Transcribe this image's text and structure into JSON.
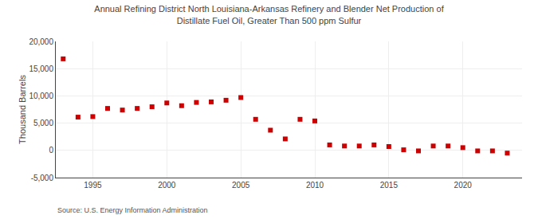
{
  "chart_data": {
    "type": "scatter",
    "title": "Annual Refining District North Louisiana-Arkansas Refinery and Blender Net Production of\nDistillate Fuel Oil, Greater Than 500 ppm Sulfur",
    "ylabel": "Thousand Barrels",
    "annotations": [
      "Source: U.S. Energy Information Administration"
    ],
    "x": [
      1993,
      1994,
      1995,
      1996,
      1997,
      1998,
      1999,
      2000,
      2001,
      2002,
      2003,
      2004,
      2005,
      2006,
      2007,
      2008,
      2009,
      2010,
      2011,
      2012,
      2013,
      2014,
      2015,
      2016,
      2017,
      2018,
      2019,
      2020,
      2021,
      2022,
      2023
    ],
    "values": [
      16800,
      6100,
      6200,
      7700,
      7400,
      7700,
      8000,
      8700,
      8200,
      8800,
      8900,
      9200,
      9700,
      5700,
      3700,
      2100,
      5700,
      5400,
      1000,
      800,
      800,
      1000,
      700,
      100,
      -100,
      800,
      800,
      500,
      -100,
      -100,
      -500
    ],
    "color": "#cc0000",
    "marker": "square",
    "xlim": [
      1992.5,
      2024
    ],
    "xticks": [
      1995,
      2000,
      2005,
      2010,
      2015,
      2020
    ],
    "ylim": [
      -5000,
      20000
    ],
    "yticks": [
      {
        "value": -5000,
        "label": "-5,000"
      },
      0,
      {
        "value": 5000,
        "label": "5,000"
      },
      {
        "value": 10000,
        "label": "10,000"
      },
      {
        "value": 15000,
        "label": "15,000"
      },
      {
        "value": 20000,
        "label": "20,000"
      }
    ],
    "grid": true
  }
}
